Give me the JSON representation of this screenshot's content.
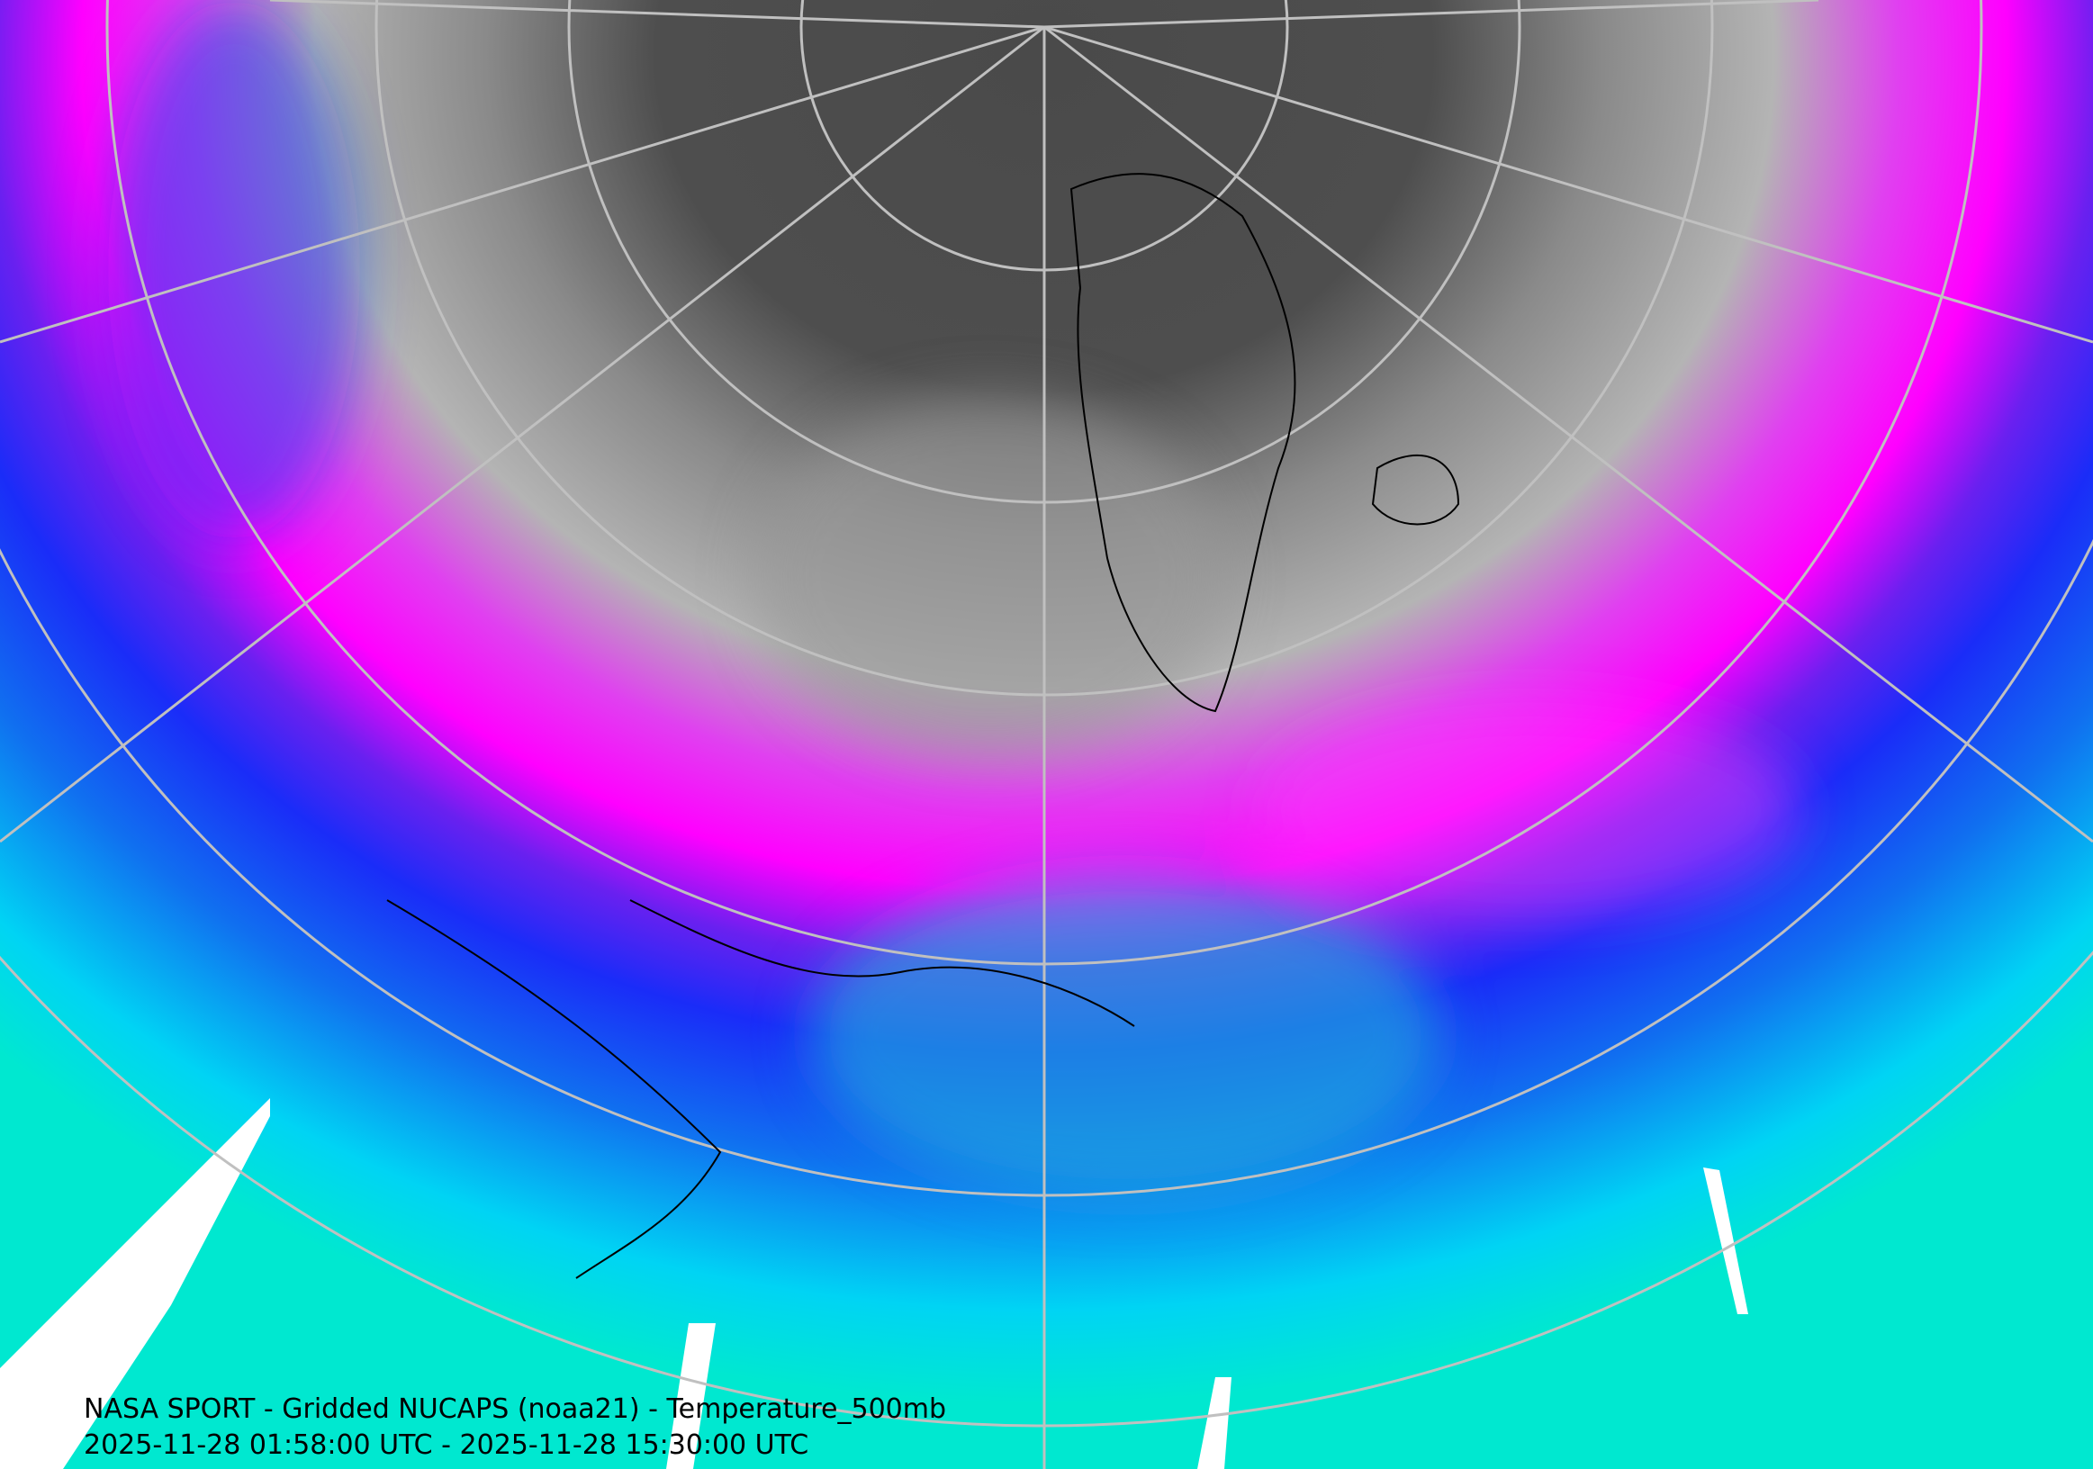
{
  "caption": {
    "line1": "NASA SPORT - Gridded NUCAPS (noaa21) - Temperature_500mb",
    "line2": "2025-11-28 01:58:00 UTC - 2025-11-28 15:30:00 UTC"
  }
}
